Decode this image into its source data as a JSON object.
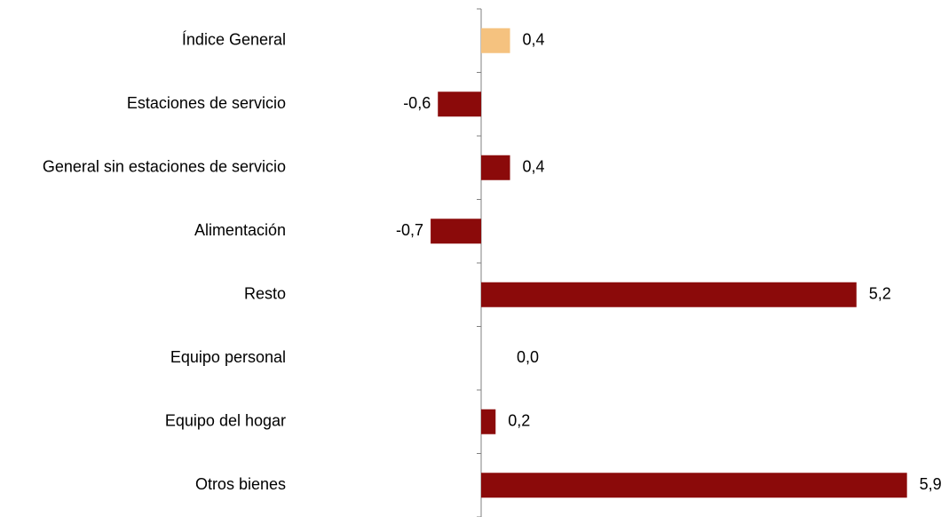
{
  "chart_data": {
    "type": "bar",
    "orientation": "horizontal",
    "title": "",
    "xlabel": "",
    "ylabel": "",
    "categories": [
      "Índice General",
      "Estaciones de servicio",
      "General sin estaciones de servicio",
      "Alimentación",
      "Resto",
      "Equipo personal",
      "Equipo del hogar",
      "Otros bienes"
    ],
    "values": [
      0.4,
      -0.6,
      0.4,
      -0.7,
      5.2,
      0.0,
      0.2,
      5.9
    ],
    "value_labels": [
      "0,4",
      "-0,6",
      "0,4",
      "-0,7",
      "5,2",
      "0,0",
      "0,2",
      "5,9"
    ],
    "bar_colors": [
      "#f5c27f",
      "#8b0a0a",
      "#8b0a0a",
      "#8b0a0a",
      "#8b0a0a",
      "#8b0a0a",
      "#8b0a0a",
      "#8b0a0a"
    ],
    "xlim": [
      -6.7,
      6.0
    ],
    "grid": false,
    "legend": "none"
  }
}
